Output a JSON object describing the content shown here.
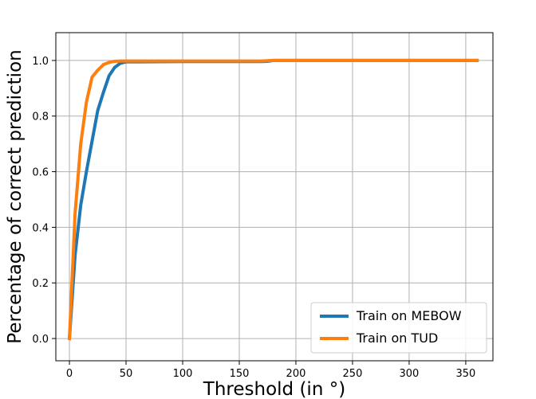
{
  "chart_data": {
    "type": "line",
    "title": "",
    "xlabel": "Threshold (in °)",
    "ylabel": "Percentage of correct prediction",
    "xlim": [
      -12,
      374
    ],
    "ylim": [
      -0.08,
      1.1
    ],
    "xticks": [
      0,
      50,
      100,
      150,
      200,
      250,
      300,
      350
    ],
    "yticks": [
      0.0,
      0.2,
      0.4,
      0.6,
      0.8,
      1.0
    ],
    "grid": true,
    "legend_position": "lower-right",
    "series": [
      {
        "name": "Train on MEBOW",
        "color": "#1f77b4",
        "x": [
          0,
          5,
          10,
          15,
          20,
          25,
          30,
          35,
          40,
          45,
          50,
          60,
          100,
          150,
          170,
          175,
          180,
          200,
          250,
          300,
          360
        ],
        "y": [
          0.0,
          0.3,
          0.48,
          0.6,
          0.71,
          0.82,
          0.885,
          0.945,
          0.975,
          0.99,
          0.995,
          0.995,
          0.996,
          0.996,
          0.996,
          0.997,
          1.0,
          1.0,
          1.0,
          1.0,
          1.0
        ]
      },
      {
        "name": "Train on TUD",
        "color": "#ff7f0e",
        "x": [
          0,
          5,
          10,
          15,
          20,
          25,
          30,
          35,
          40,
          45,
          50,
          60,
          100,
          150,
          170,
          175,
          180,
          200,
          250,
          300,
          360
        ],
        "y": [
          0.0,
          0.45,
          0.7,
          0.85,
          0.94,
          0.965,
          0.985,
          0.993,
          0.997,
          0.998,
          0.998,
          0.998,
          0.998,
          0.998,
          0.998,
          0.999,
          1.0,
          1.0,
          1.0,
          1.0,
          1.0
        ]
      }
    ]
  }
}
